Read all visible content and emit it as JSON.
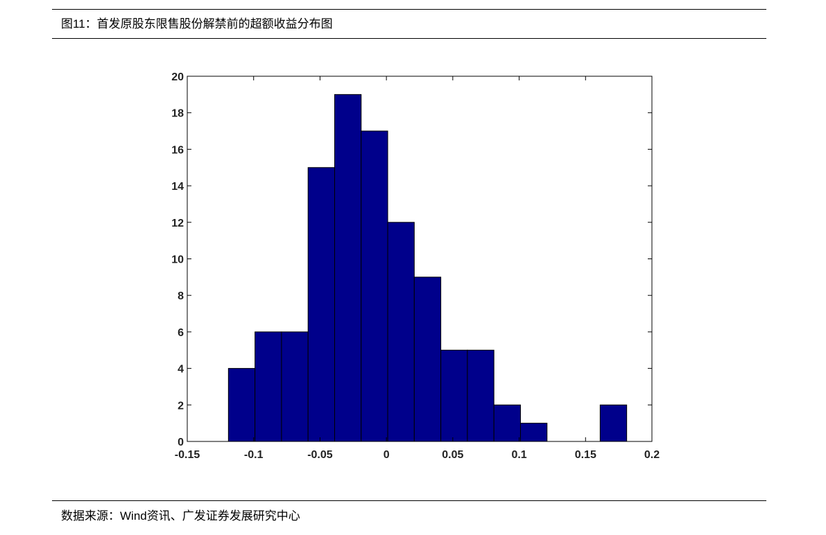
{
  "chart_data": {
    "type": "histogram",
    "title": "图11：首发原股东限售股份解禁前的超额收益分布图",
    "source": "数据来源：Wind资讯、广发证券发展研究中心",
    "bins": [
      -0.119,
      -0.099,
      -0.079,
      -0.059,
      -0.039,
      -0.019,
      0.001,
      0.021,
      0.041,
      0.061,
      0.081,
      0.101,
      0.121,
      0.141,
      0.161,
      0.181
    ],
    "values": [
      4,
      6,
      6,
      15,
      19,
      17,
      12,
      9,
      5,
      5,
      2,
      1,
      0,
      0,
      2
    ],
    "color": "#00008b",
    "xlim": [
      -0.15,
      0.2
    ],
    "xticks": [
      -0.15,
      -0.1,
      -0.05,
      0,
      0.05,
      0.1,
      0.15,
      0.2
    ],
    "ylim": [
      0,
      20
    ],
    "yticks": [
      0,
      2,
      4,
      6,
      8,
      10,
      12,
      14,
      16,
      18,
      20
    ]
  }
}
